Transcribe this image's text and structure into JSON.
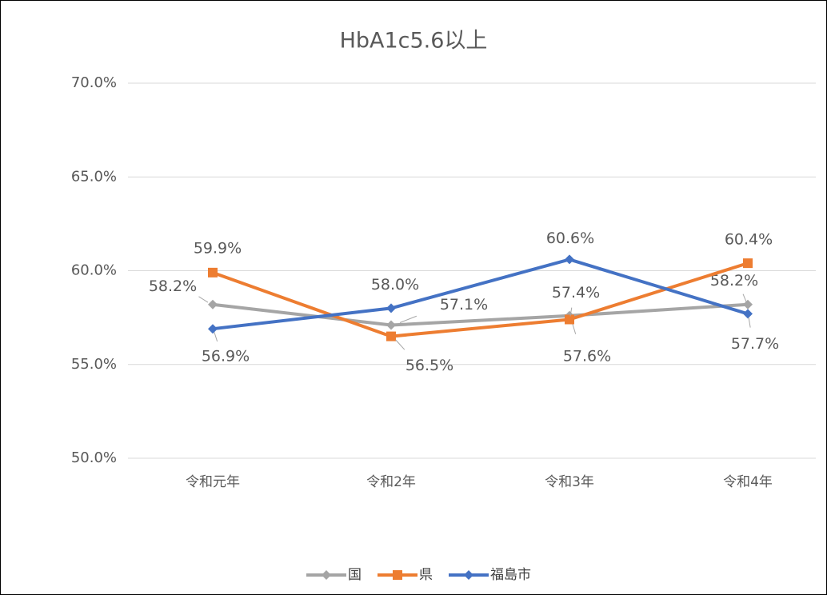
{
  "chart_data": {
    "type": "line",
    "title": "HbA1c5.6以上",
    "categories": [
      "令和元年",
      "令和2年",
      "令和3年",
      "令和4年"
    ],
    "series": [
      {
        "name": "国",
        "color": "#a5a5a5",
        "marker": "diamond",
        "values": [
          58.2,
          57.1,
          57.6,
          58.2
        ],
        "value_labels": [
          "58.2%",
          "57.1%",
          "57.6%",
          "58.2%"
        ]
      },
      {
        "name": "県",
        "color": "#ed7d31",
        "marker": "square",
        "values": [
          59.9,
          56.5,
          57.4,
          60.4
        ],
        "value_labels": [
          "59.9%",
          "56.5%",
          "57.4%",
          "60.4%"
        ]
      },
      {
        "name": "福島市",
        "color": "#4472c4",
        "marker": "diamond",
        "values": [
          56.9,
          58.0,
          60.6,
          57.7
        ],
        "value_labels": [
          "56.9%",
          "58.0%",
          "60.6%",
          "57.7%"
        ]
      }
    ],
    "ylim": [
      50,
      70
    ],
    "yticks": [
      {
        "value": 50,
        "label": "50.0%"
      },
      {
        "value": 55,
        "label": "55.0%"
      },
      {
        "value": 60,
        "label": "60.0%"
      },
      {
        "value": 65,
        "label": "65.0%"
      },
      {
        "value": 70,
        "label": "70.0%"
      }
    ],
    "grid": true,
    "legend": "bottom"
  }
}
